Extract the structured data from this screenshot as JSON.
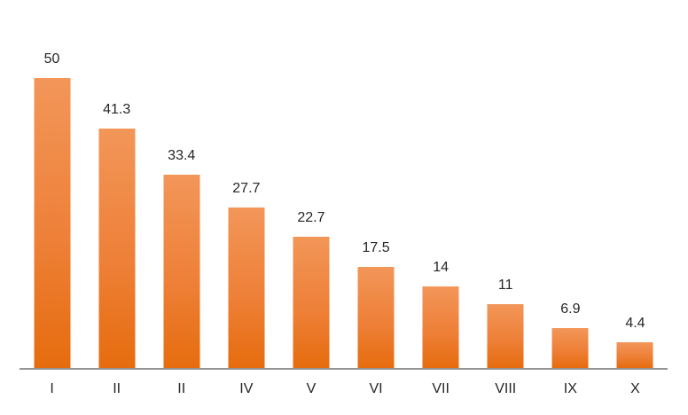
{
  "chart_data": {
    "type": "bar",
    "title": "",
    "xlabel": "",
    "ylabel": "",
    "categories": [
      "I",
      "II",
      "II",
      "IV",
      "V",
      "VI",
      "VII",
      "VIII",
      "IX",
      "X"
    ],
    "values": [
      50,
      41.3,
      33.4,
      27.7,
      22.7,
      17.5,
      14,
      11,
      6.9,
      4.4
    ],
    "value_labels": [
      "50",
      "41.3",
      "33.4",
      "27.7",
      "22.7",
      "17.5",
      "14",
      "11",
      "6.9",
      "4.4"
    ],
    "ylim": [
      0,
      50
    ],
    "grid": false,
    "legend": false,
    "layout": {
      "sorted": "descending",
      "data_labels_position": "outside-end",
      "y_axis_visible": false,
      "x_axis_line_visible": true
    },
    "colors": {
      "bar_gradient_top": "#F29659",
      "bar_gradient_mid": "#EE8038",
      "bar_gradient_bottom": "#E66C0E",
      "axis_line": "#969696",
      "label_text": "#262626",
      "background": "#FFFFFF"
    }
  }
}
